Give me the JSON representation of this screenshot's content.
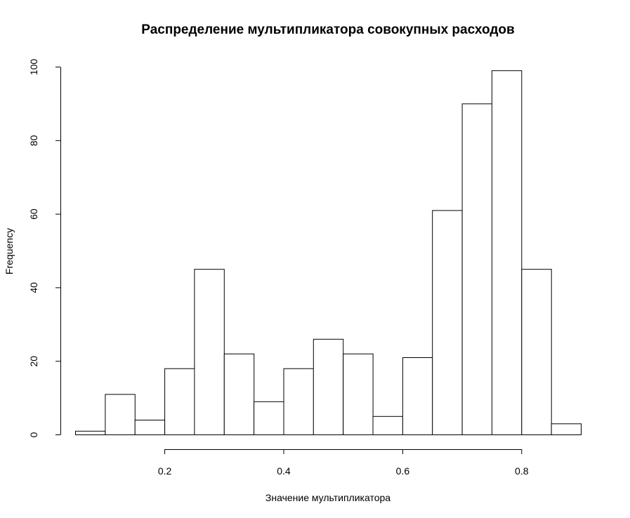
{
  "chart_data": {
    "type": "bar",
    "title": "Распределение мультипликатора совокупных расходов",
    "xlabel": "Значение мультипликатора",
    "ylabel": "Frequency",
    "bin_edges": [
      0.05,
      0.1,
      0.15,
      0.2,
      0.25,
      0.3,
      0.35,
      0.4,
      0.45,
      0.5,
      0.55,
      0.6,
      0.65,
      0.7,
      0.75,
      0.8,
      0.85,
      0.9
    ],
    "values": [
      1,
      11,
      4,
      18,
      45,
      22,
      9,
      18,
      26,
      22,
      5,
      21,
      61,
      90,
      99,
      45,
      3
    ],
    "xlim": [
      0.05,
      0.9
    ],
    "ylim": [
      0,
      100
    ],
    "x_ticks": [
      0.2,
      0.4,
      0.6,
      0.8
    ],
    "x_tick_labels": [
      "0.2",
      "0.4",
      "0.6",
      "0.8"
    ],
    "y_ticks": [
      0,
      20,
      40,
      60,
      80,
      100
    ],
    "y_tick_labels": [
      "0",
      "20",
      "40",
      "60",
      "80",
      "100"
    ],
    "grid": false,
    "bar_fill": "#ffffff",
    "bar_stroke": "#000000"
  }
}
